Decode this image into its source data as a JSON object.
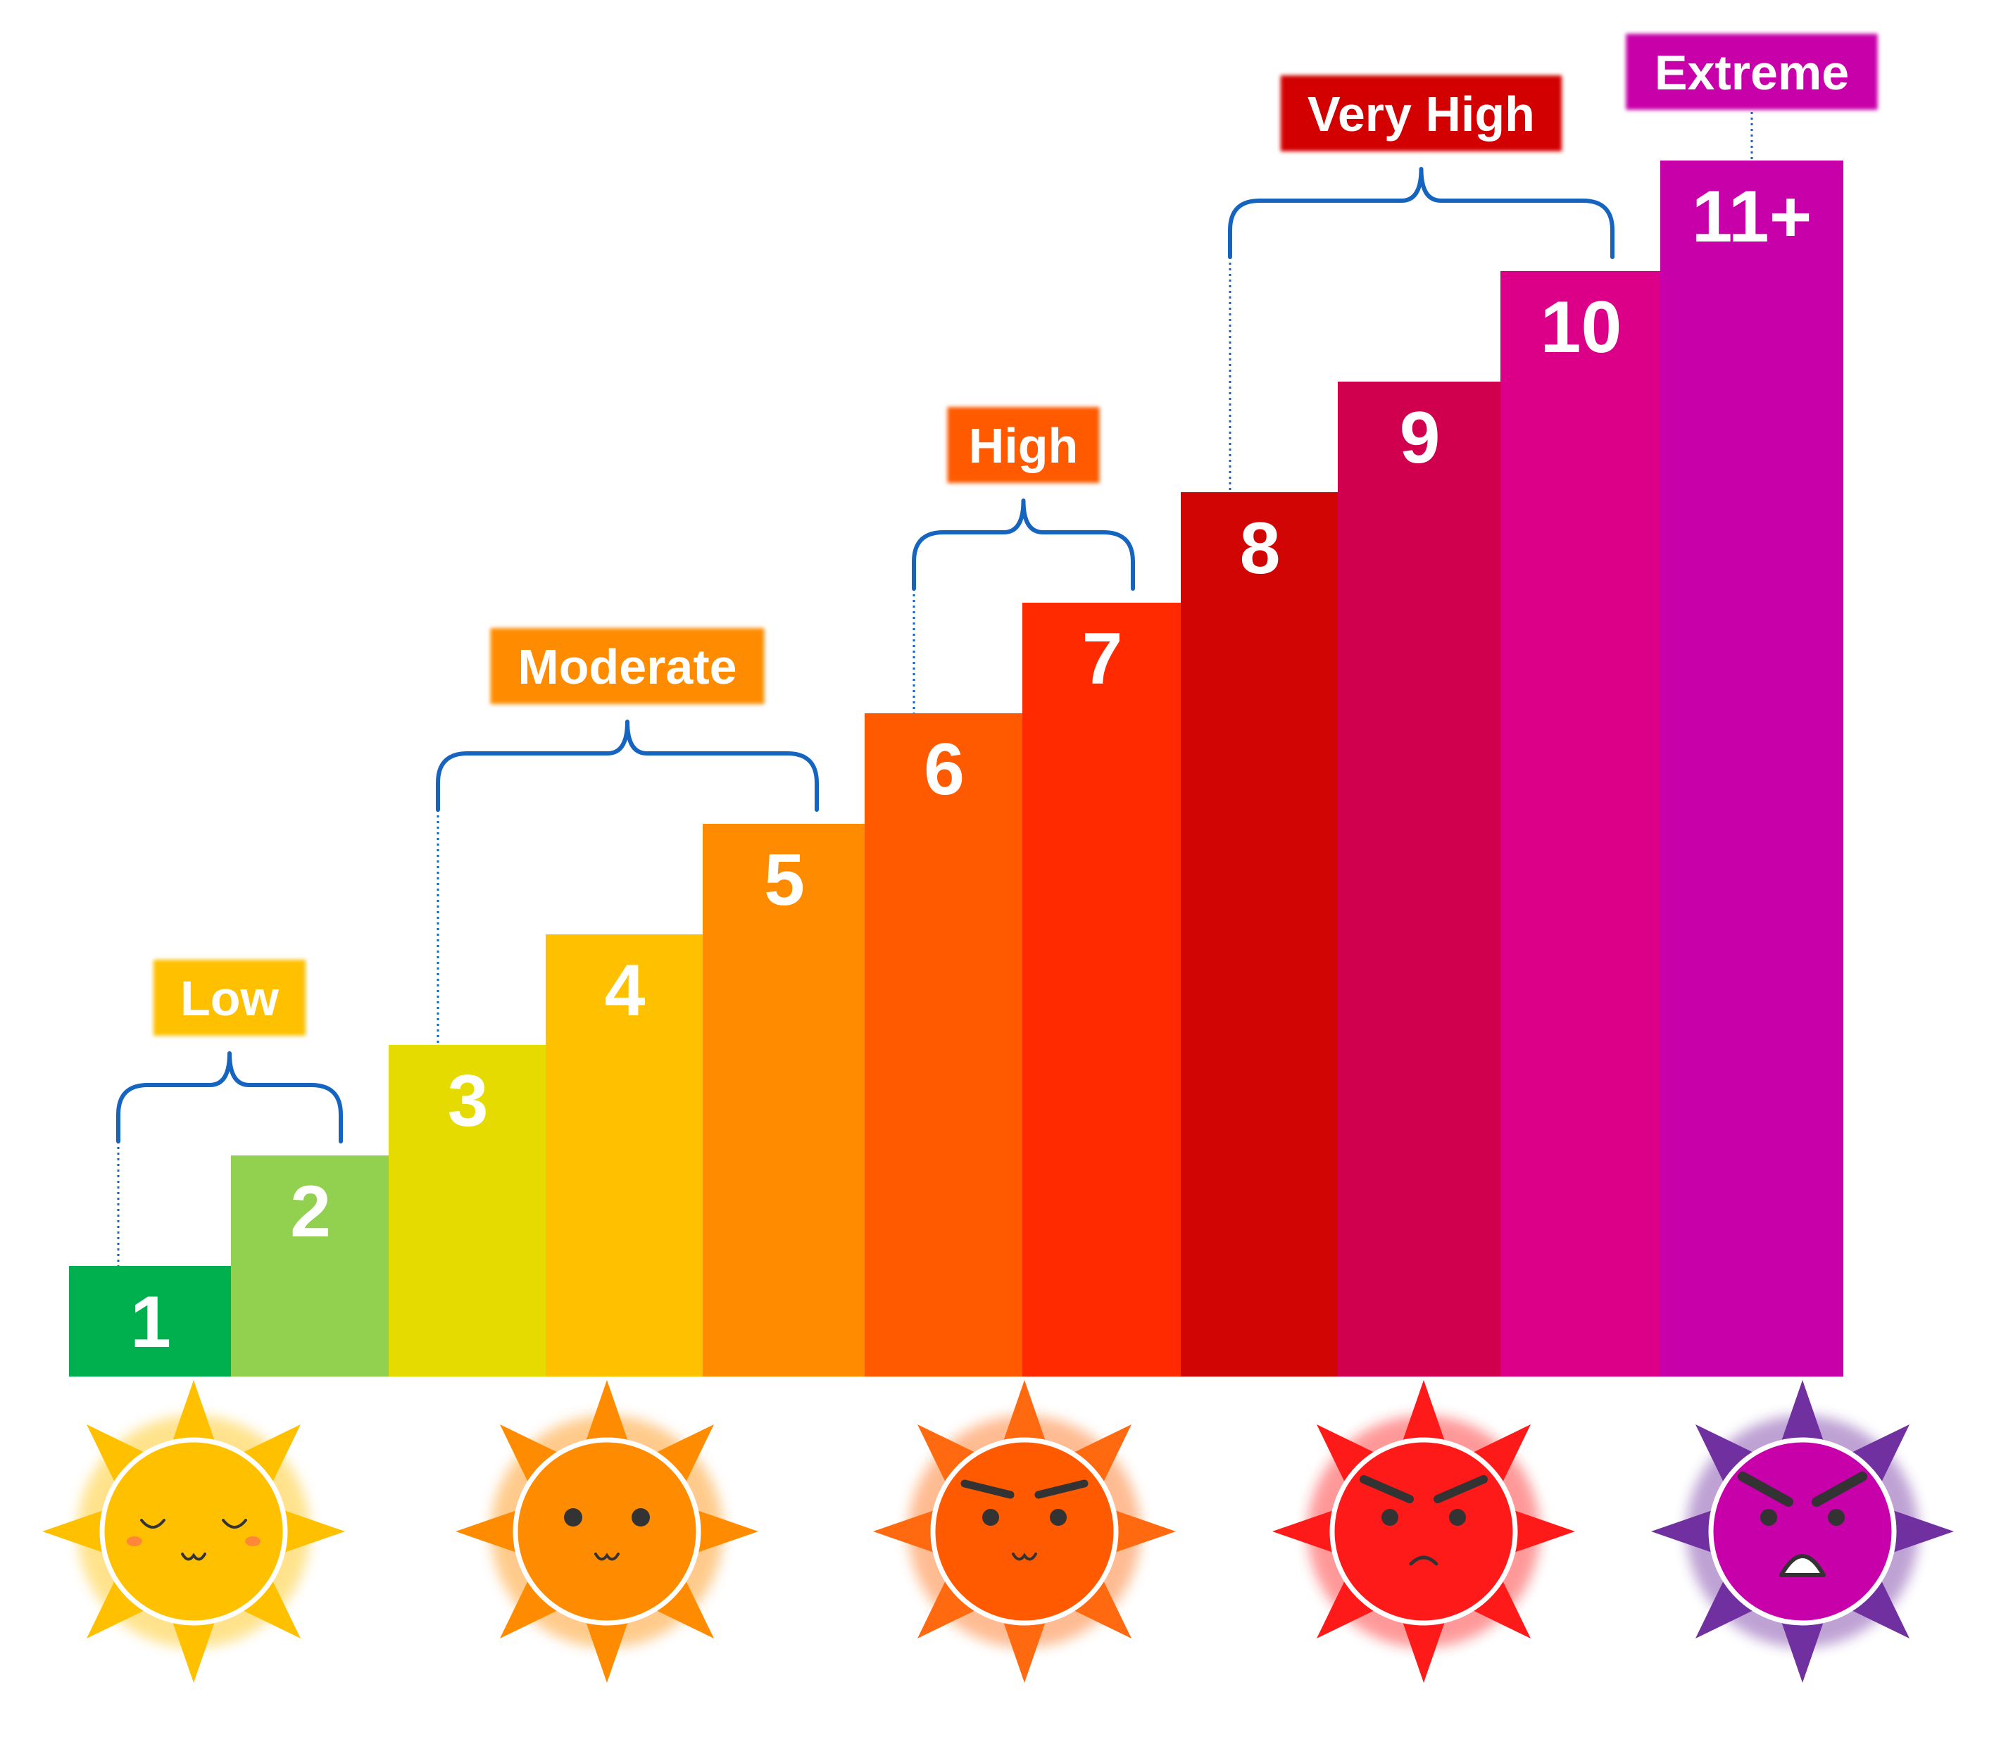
{
  "chart_data": {
    "type": "bar",
    "title": "",
    "xlabel": "",
    "ylabel": "",
    "ylim": [
      0,
      11
    ],
    "grid": false,
    "categories": [
      "1",
      "2",
      "3",
      "4",
      "5",
      "6",
      "7",
      "8",
      "9",
      "10",
      "11+"
    ],
    "values": [
      1,
      2,
      3,
      4,
      5,
      6,
      7,
      8,
      9,
      10,
      11
    ],
    "bar_colors": [
      "#00b04f",
      "#92d050",
      "#e5db00",
      "#ffc000",
      "#ff8c00",
      "#ff5a00",
      "#ff2a00",
      "#d20505",
      "#d1004f",
      "#dc0088",
      "#c800aa"
    ],
    "groups": [
      {
        "label": "Low",
        "start": 0,
        "end": 1,
        "color": "#ffc000"
      },
      {
        "label": "Moderate",
        "start": 2,
        "end": 4,
        "color": "#ff8c00"
      },
      {
        "label": "High",
        "start": 5,
        "end": 6,
        "color": "#ff5a00"
      },
      {
        "label": "Very High",
        "start": 7,
        "end": 9,
        "color": "#d20505"
      },
      {
        "label": "Extreme",
        "start": 10,
        "end": 10,
        "color": "#c800aa"
      }
    ],
    "bracket_color": "#1565c0"
  },
  "suns": [
    {
      "name": "sun-low",
      "mood": "content",
      "color": "#ffc000",
      "ray_color": "#ffc000"
    },
    {
      "name": "sun-moderate",
      "mood": "smile",
      "color": "#ff8c00",
      "ray_color": "#ff8c00"
    },
    {
      "name": "sun-high",
      "mood": "annoyed",
      "color": "#ff5a00",
      "ray_color": "#ff6a10"
    },
    {
      "name": "sun-very-high",
      "mood": "angry",
      "color": "#ff1a1a",
      "ray_color": "#ff1a1a"
    },
    {
      "name": "sun-extreme",
      "mood": "furious",
      "color": "#c800aa",
      "ray_color": "#7030a0"
    }
  ]
}
